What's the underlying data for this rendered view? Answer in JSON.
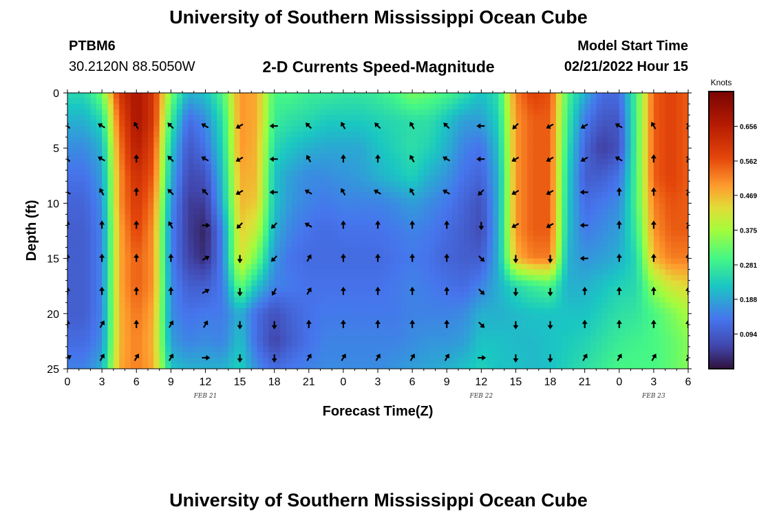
{
  "header": {
    "title": "University of Southern Mississippi Ocean Cube",
    "station_id": "PTBM6",
    "coordinates": "30.2120N  88.5050W",
    "subtitle": "2-D Currents Speed-Magnitude",
    "model_start_label": "Model Start Time",
    "model_start_value": "02/21/2022 Hour 15"
  },
  "footer": {
    "title": "University of Southern Mississippi Ocean Cube"
  },
  "chart_data": {
    "type": "heatmap",
    "title": "2-D Currents Speed-Magnitude",
    "xlabel": "Forecast Time(Z)",
    "ylabel": "Depth (ft)",
    "x_range_hours": [
      0,
      54
    ],
    "ylim": [
      0,
      25
    ],
    "y_ticks": [
      0,
      5,
      10,
      15,
      20,
      25
    ],
    "x_tick_labels": [
      "0",
      "3",
      "6",
      "9",
      "12",
      "15",
      "18",
      "21",
      "0",
      "3",
      "6",
      "9",
      "12",
      "15",
      "18",
      "21",
      "0",
      "3",
      "6"
    ],
    "date_labels": [
      {
        "hour": 12,
        "label": "FEB 21"
      },
      {
        "hour": 36,
        "label": "FEB 22"
      },
      {
        "hour": 51,
        "label": "FEB 23"
      }
    ],
    "colorbar": {
      "unit": "Knots",
      "range": [
        0.0,
        0.75
      ],
      "tick_values": [
        0.094,
        0.188,
        0.281,
        0.375,
        0.469,
        0.562,
        0.656
      ],
      "tick_labels": [
        "0.094",
        "0.188",
        "0.281",
        "0.375",
        "0.469",
        "0.562",
        "0.656"
      ]
    },
    "speed_knots": {
      "x_hours": [
        0,
        1.5,
        3,
        4.5,
        6,
        7.5,
        9,
        10.5,
        12,
        13.5,
        15,
        16.5,
        18,
        19.5,
        21,
        22.5,
        24,
        25.5,
        27,
        28.5,
        30,
        31.5,
        33,
        34.5,
        36,
        37.5,
        39,
        40.5,
        42,
        43.5,
        45,
        46.5,
        48,
        49.5,
        51,
        52.5,
        54
      ],
      "depth_ft": [
        0,
        2.5,
        5,
        7.5,
        10,
        12.5,
        15,
        17.5,
        20,
        22.5,
        25
      ],
      "values": [
        [
          0.25,
          0.25,
          0.33,
          0.6,
          0.68,
          0.6,
          0.34,
          0.2,
          0.22,
          0.3,
          0.5,
          0.48,
          0.3,
          0.3,
          0.28,
          0.28,
          0.27,
          0.27,
          0.28,
          0.3,
          0.34,
          0.32,
          0.3,
          0.26,
          0.22,
          0.26,
          0.52,
          0.58,
          0.56,
          0.3,
          0.2,
          0.12,
          0.12,
          0.3,
          0.55,
          0.58,
          0.55
        ],
        [
          0.2,
          0.2,
          0.25,
          0.55,
          0.68,
          0.6,
          0.28,
          0.12,
          0.16,
          0.26,
          0.5,
          0.48,
          0.28,
          0.26,
          0.25,
          0.23,
          0.23,
          0.23,
          0.24,
          0.25,
          0.26,
          0.26,
          0.22,
          0.18,
          0.18,
          0.24,
          0.5,
          0.55,
          0.55,
          0.28,
          0.14,
          0.09,
          0.09,
          0.3,
          0.55,
          0.58,
          0.55
        ],
        [
          0.16,
          0.16,
          0.2,
          0.52,
          0.66,
          0.57,
          0.23,
          0.09,
          0.13,
          0.24,
          0.5,
          0.47,
          0.25,
          0.22,
          0.2,
          0.19,
          0.19,
          0.19,
          0.22,
          0.24,
          0.26,
          0.24,
          0.2,
          0.15,
          0.13,
          0.22,
          0.5,
          0.55,
          0.55,
          0.26,
          0.11,
          0.05,
          0.08,
          0.3,
          0.55,
          0.58,
          0.55
        ],
        [
          0.13,
          0.13,
          0.18,
          0.5,
          0.62,
          0.55,
          0.2,
          0.07,
          0.08,
          0.22,
          0.48,
          0.47,
          0.22,
          0.18,
          0.16,
          0.16,
          0.17,
          0.18,
          0.2,
          0.22,
          0.24,
          0.2,
          0.17,
          0.13,
          0.11,
          0.2,
          0.5,
          0.55,
          0.55,
          0.24,
          0.1,
          0.1,
          0.13,
          0.3,
          0.55,
          0.58,
          0.55
        ],
        [
          0.11,
          0.11,
          0.16,
          0.5,
          0.6,
          0.52,
          0.17,
          0.05,
          0.05,
          0.2,
          0.47,
          0.45,
          0.22,
          0.17,
          0.15,
          0.14,
          0.15,
          0.15,
          0.15,
          0.16,
          0.18,
          0.16,
          0.14,
          0.11,
          0.08,
          0.2,
          0.5,
          0.55,
          0.55,
          0.23,
          0.12,
          0.14,
          0.16,
          0.3,
          0.52,
          0.56,
          0.55
        ],
        [
          0.1,
          0.1,
          0.15,
          0.48,
          0.58,
          0.5,
          0.15,
          0.05,
          0.02,
          0.15,
          0.45,
          0.4,
          0.2,
          0.15,
          0.13,
          0.12,
          0.13,
          0.13,
          0.13,
          0.14,
          0.15,
          0.14,
          0.12,
          0.1,
          0.07,
          0.2,
          0.5,
          0.55,
          0.55,
          0.22,
          0.14,
          0.16,
          0.18,
          0.28,
          0.5,
          0.55,
          0.55
        ],
        [
          0.1,
          0.1,
          0.15,
          0.48,
          0.55,
          0.5,
          0.15,
          0.06,
          0.03,
          0.15,
          0.43,
          0.33,
          0.17,
          0.13,
          0.12,
          0.12,
          0.12,
          0.12,
          0.12,
          0.13,
          0.14,
          0.13,
          0.11,
          0.1,
          0.1,
          0.2,
          0.47,
          0.52,
          0.52,
          0.2,
          0.17,
          0.18,
          0.2,
          0.25,
          0.47,
          0.52,
          0.52
        ],
        [
          0.1,
          0.1,
          0.15,
          0.48,
          0.55,
          0.5,
          0.16,
          0.1,
          0.1,
          0.14,
          0.33,
          0.22,
          0.15,
          0.14,
          0.13,
          0.13,
          0.13,
          0.13,
          0.13,
          0.14,
          0.15,
          0.14,
          0.13,
          0.12,
          0.15,
          0.2,
          0.25,
          0.28,
          0.3,
          0.2,
          0.2,
          0.22,
          0.24,
          0.25,
          0.36,
          0.42,
          0.44
        ],
        [
          0.1,
          0.1,
          0.15,
          0.47,
          0.53,
          0.48,
          0.16,
          0.13,
          0.14,
          0.14,
          0.2,
          0.12,
          0.08,
          0.11,
          0.13,
          0.14,
          0.14,
          0.14,
          0.14,
          0.14,
          0.15,
          0.15,
          0.15,
          0.16,
          0.2,
          0.2,
          0.21,
          0.22,
          0.22,
          0.22,
          0.22,
          0.24,
          0.26,
          0.27,
          0.3,
          0.34,
          0.38
        ],
        [
          0.12,
          0.12,
          0.16,
          0.47,
          0.52,
          0.47,
          0.18,
          0.15,
          0.16,
          0.15,
          0.22,
          0.12,
          0.06,
          0.1,
          0.13,
          0.15,
          0.15,
          0.15,
          0.15,
          0.15,
          0.16,
          0.17,
          0.17,
          0.18,
          0.22,
          0.22,
          0.21,
          0.21,
          0.22,
          0.23,
          0.24,
          0.26,
          0.28,
          0.29,
          0.3,
          0.32,
          0.35
        ],
        [
          0.15,
          0.15,
          0.2,
          0.48,
          0.52,
          0.48,
          0.22,
          0.2,
          0.2,
          0.2,
          0.24,
          0.16,
          0.12,
          0.14,
          0.15,
          0.16,
          0.16,
          0.16,
          0.16,
          0.17,
          0.18,
          0.19,
          0.2,
          0.22,
          0.24,
          0.22,
          0.22,
          0.21,
          0.22,
          0.24,
          0.26,
          0.28,
          0.3,
          0.3,
          0.3,
          0.32,
          0.35
        ]
      ]
    },
    "vectors_deg": {
      "x_hours": [
        0,
        3,
        6,
        9,
        12,
        15,
        18,
        21,
        24,
        27,
        30,
        33,
        36,
        39,
        42,
        45,
        48,
        51,
        54
      ],
      "depth_ft": [
        3,
        6,
        9,
        12,
        15,
        18,
        21,
        24
      ],
      "angles": [
        [
          315,
          300,
          330,
          315,
          300,
          240,
          270,
          315,
          330,
          315,
          330,
          315,
          270,
          225,
          240,
          240,
          300,
          330,
          20
        ],
        [
          315,
          300,
          0,
          315,
          300,
          240,
          270,
          330,
          0,
          0,
          330,
          300,
          270,
          240,
          240,
          240,
          300,
          0,
          20
        ],
        [
          300,
          330,
          0,
          315,
          315,
          240,
          270,
          300,
          330,
          300,
          330,
          300,
          225,
          240,
          240,
          270,
          0,
          0,
          20
        ],
        [
          0,
          0,
          0,
          330,
          90,
          225,
          225,
          300,
          0,
          0,
          0,
          0,
          180,
          240,
          240,
          270,
          0,
          0,
          20
        ],
        [
          0,
          0,
          0,
          0,
          60,
          180,
          225,
          30,
          0,
          0,
          0,
          0,
          135,
          180,
          180,
          270,
          0,
          0,
          0
        ],
        [
          0,
          0,
          0,
          0,
          60,
          180,
          210,
          30,
          0,
          0,
          0,
          0,
          135,
          180,
          180,
          0,
          0,
          0,
          0
        ],
        [
          0,
          30,
          0,
          30,
          30,
          180,
          180,
          0,
          0,
          0,
          0,
          0,
          135,
          180,
          180,
          0,
          0,
          0,
          0
        ],
        [
          60,
          30,
          30,
          30,
          90,
          180,
          180,
          30,
          30,
          30,
          30,
          30,
          90,
          180,
          180,
          30,
          30,
          30,
          30
        ]
      ]
    }
  }
}
